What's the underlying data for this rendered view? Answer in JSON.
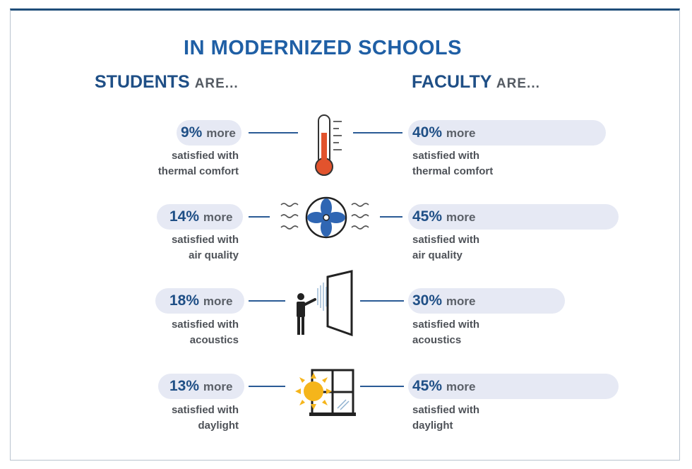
{
  "title": "IN MODERNIZED SCHOOLS",
  "students": {
    "label": "STUDENTS",
    "suffix": "ARE..."
  },
  "faculty": {
    "label": "FACULTY",
    "suffix": "ARE..."
  },
  "more_word": "more",
  "satisfied_with": "satisfied with",
  "rows": [
    {
      "topic": "thermal comfort",
      "icon": "thermometer-icon",
      "student_pct": "9%",
      "faculty_pct": "40%"
    },
    {
      "topic": "air quality",
      "icon": "fan-icon",
      "student_pct": "14%",
      "faculty_pct": "45%"
    },
    {
      "topic": "acoustics",
      "icon": "teacher-board-icon",
      "student_pct": "18%",
      "faculty_pct": "30%"
    },
    {
      "topic": "daylight",
      "icon": "sun-window-icon",
      "student_pct": "13%",
      "faculty_pct": "45%"
    }
  ],
  "colors": {
    "navy": "#1f4f86",
    "blue": "#1f5fa5",
    "pill": "#e6e9f4",
    "red": "#e2532d",
    "sun": "#f5b51b"
  }
}
